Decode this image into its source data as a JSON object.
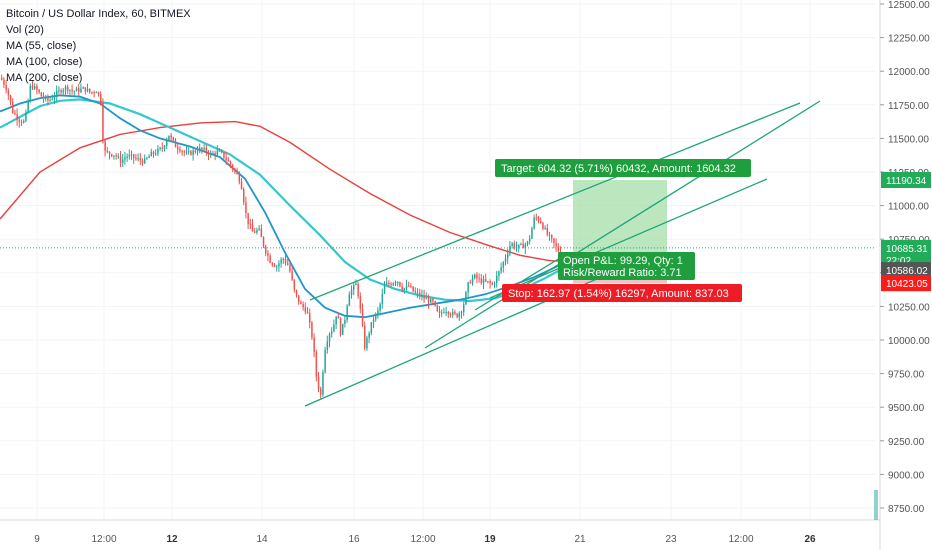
{
  "legend": {
    "title": "Bitcoin / US Dollar Index, 60, BITMEX",
    "vol": "Vol (20)",
    "ma1": "MA (55, close)",
    "ma2": "MA (100, close)",
    "ma3": "MA (200, close)"
  },
  "chart_data": {
    "type": "candlestick",
    "y_ticks": [
      8750,
      9000,
      9250,
      9500,
      9750,
      10000,
      10250,
      10500,
      10750,
      11000,
      11250,
      11500,
      11750,
      12000,
      12250,
      12500
    ],
    "y_tick_labels": [
      "8750.00",
      "9000.00",
      "9250.00",
      "9500.00",
      "9750.00",
      "10000.00",
      "10250.00",
      "10500.00",
      "10750.00",
      "11000.00",
      "11250.00",
      "11500.00",
      "11750.00",
      "12000.00",
      "12250.00",
      "12500.00"
    ],
    "ylim": [
      8600,
      12560
    ],
    "x_ticks": [
      {
        "label": "9",
        "bold": false
      },
      {
        "label": "12:00",
        "bold": false
      },
      {
        "label": "12",
        "bold": true
      },
      {
        "label": "14",
        "bold": false
      },
      {
        "label": "16",
        "bold": false
      },
      {
        "label": "12:00",
        "bold": false
      },
      {
        "label": "19",
        "bold": true
      },
      {
        "label": "21",
        "bold": false
      },
      {
        "label": "23",
        "bold": false
      },
      {
        "label": "12:00",
        "bold": false
      },
      {
        "label": "26",
        "bold": true
      }
    ],
    "price_path": [
      [
        0,
        11950
      ],
      [
        6,
        11870
      ],
      [
        12,
        11700
      ],
      [
        18,
        11640
      ],
      [
        24,
        11620
      ],
      [
        30,
        11900
      ],
      [
        36,
        11860
      ],
      [
        42,
        11800
      ],
      [
        48,
        11780
      ],
      [
        54,
        11820
      ],
      [
        60,
        11860
      ],
      [
        66,
        11880
      ],
      [
        72,
        11850
      ],
      [
        78,
        11860
      ],
      [
        84,
        11870
      ],
      [
        90,
        11840
      ],
      [
        96,
        11860
      ],
      [
        100,
        11780
      ],
      [
        103,
        11400
      ],
      [
        108,
        11390
      ],
      [
        114,
        11380
      ],
      [
        120,
        11330
      ],
      [
        126,
        11370
      ],
      [
        132,
        11360
      ],
      [
        138,
        11340
      ],
      [
        144,
        11330
      ],
      [
        150,
        11380
      ],
      [
        156,
        11400
      ],
      [
        162,
        11430
      ],
      [
        168,
        11530
      ],
      [
        174,
        11450
      ],
      [
        180,
        11420
      ],
      [
        186,
        11380
      ],
      [
        192,
        11400
      ],
      [
        198,
        11420
      ],
      [
        204,
        11410
      ],
      [
        210,
        11380
      ],
      [
        216,
        11400
      ],
      [
        222,
        11380
      ],
      [
        228,
        11320
      ],
      [
        234,
        11260
      ],
      [
        240,
        11180
      ],
      [
        246,
        10900
      ],
      [
        252,
        10800
      ],
      [
        258,
        10820
      ],
      [
        264,
        10680
      ],
      [
        270,
        10580
      ],
      [
        276,
        10550
      ],
      [
        282,
        10610
      ],
      [
        288,
        10550
      ],
      [
        294,
        10350
      ],
      [
        300,
        10260
      ],
      [
        306,
        10220
      ],
      [
        312,
        10000
      ],
      [
        316,
        9700
      ],
      [
        320,
        9590
      ],
      [
        324,
        9930
      ],
      [
        328,
        10050
      ],
      [
        332,
        10080
      ],
      [
        336,
        10210
      ],
      [
        340,
        10050
      ],
      [
        344,
        10150
      ],
      [
        348,
        10350
      ],
      [
        352,
        10380
      ],
      [
        356,
        10420
      ],
      [
        360,
        10200
      ],
      [
        364,
        9950
      ],
      [
        368,
        10050
      ],
      [
        372,
        10150
      ],
      [
        378,
        10220
      ],
      [
        384,
        10410
      ],
      [
        390,
        10420
      ],
      [
        396,
        10450
      ],
      [
        402,
        10380
      ],
      [
        408,
        10400
      ],
      [
        414,
        10350
      ],
      [
        420,
        10330
      ],
      [
        426,
        10300
      ],
      [
        432,
        10280
      ],
      [
        438,
        10180
      ],
      [
        444,
        10230
      ],
      [
        450,
        10200
      ],
      [
        456,
        10180
      ],
      [
        462,
        10240
      ],
      [
        468,
        10430
      ],
      [
        474,
        10470
      ],
      [
        480,
        10440
      ],
      [
        486,
        10430
      ],
      [
        492,
        10410
      ],
      [
        498,
        10500
      ],
      [
        504,
        10600
      ],
      [
        510,
        10720
      ],
      [
        516,
        10690
      ],
      [
        522,
        10700
      ],
      [
        528,
        10730
      ],
      [
        534,
        10920
      ],
      [
        540,
        10880
      ],
      [
        546,
        10790
      ],
      [
        552,
        10730
      ],
      [
        558,
        10660
      ],
      [
        563,
        10640
      ]
    ],
    "volume_bars": [
      {
        "value": 30
      }
    ],
    "moving_averages": [
      {
        "name": "MA (55, close)",
        "color": "#2196c8"
      },
      {
        "name": "MA (100, close)",
        "color": "#35c7d0"
      },
      {
        "name": "MA (200, close)",
        "color": "#e8403b"
      }
    ],
    "price_labels": [
      {
        "value": "11190.34",
        "color": "#22ab59",
        "price": 11190.34
      },
      {
        "value": "10685.31",
        "color": "#22ab59",
        "price": 10685.31
      },
      {
        "value": "22:02",
        "color": "#22ab59",
        "price": 10595
      },
      {
        "value": "10586.02",
        "color": "#555555",
        "price": 10520
      },
      {
        "value": "10423.05",
        "color": "#ff1a1a",
        "price": 10423.05
      }
    ],
    "last_price": 10685.31,
    "position": {
      "target_label": "Target: 604.32 (5.71%) 60432, Amount: 1604.32",
      "open_pl_label": "Open P&L: 99.29, Qty: 1",
      "risk_reward_label": "Risk/Reward Ratio: 3.71",
      "stop_label": "Stop: 162.97 (1.54%) 16297, Amount: 837.03",
      "target_price": 11190.34,
      "entry_price": 10586.02,
      "stop_price": 10423.05
    },
    "colors": {
      "up": "#26a69a",
      "down": "#ef5350",
      "channel": "#1da57a",
      "target_zone": "#a5dfa8",
      "stop_zone": "#f4b1b1"
    }
  }
}
